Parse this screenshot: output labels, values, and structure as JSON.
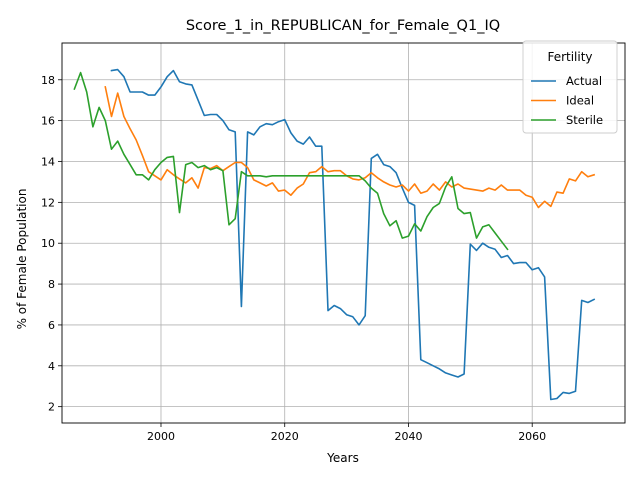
{
  "chart_data": {
    "type": "line",
    "title": "Score_1_in_REPUBLICAN_for_Female_Q1_IQ",
    "xlabel": "Years",
    "ylabel": "% of Female Population",
    "xlim": [
      1984,
      2075
    ],
    "ylim": [
      1.2,
      19.8
    ],
    "xticks": [
      2000,
      2020,
      2040,
      2060
    ],
    "yticks": [
      2,
      4,
      6,
      8,
      10,
      12,
      14,
      16,
      18
    ],
    "grid": true,
    "legend": {
      "title": "Fertility",
      "position": "upper right"
    },
    "series": [
      {
        "name": "Actual",
        "color": "#1f77b4",
        "x": [
          1992,
          1993,
          1994,
          1995,
          1996,
          1997,
          1998,
          1999,
          2000,
          2001,
          2002,
          2003,
          2004,
          2005,
          2006,
          2007,
          2008,
          2009,
          2010,
          2011,
          2012,
          2013,
          2014,
          2015,
          2016,
          2017,
          2018,
          2019,
          2020,
          2021,
          2022,
          2023,
          2024,
          2025,
          2026,
          2027,
          2028,
          2029,
          2030,
          2031,
          2032,
          2033,
          2034,
          2035,
          2036,
          2037,
          2038,
          2039,
          2040,
          2041,
          2042,
          2043,
          2044,
          2045,
          2046,
          2047,
          2048,
          2049,
          2050,
          2051,
          2052,
          2053,
          2054,
          2055,
          2056,
          2057,
          2058,
          2059,
          2060,
          2061,
          2062,
          2063,
          2064,
          2065,
          2066,
          2067,
          2068,
          2069,
          2070
        ],
        "y": [
          18.45,
          18.5,
          18.15,
          17.4,
          17.4,
          17.4,
          17.25,
          17.25,
          17.65,
          18.15,
          18.45,
          17.9,
          17.8,
          17.75,
          17.0,
          16.25,
          16.3,
          16.3,
          16.0,
          15.55,
          15.45,
          6.9,
          15.45,
          15.3,
          15.7,
          15.85,
          15.8,
          15.95,
          16.05,
          15.4,
          15.0,
          14.85,
          15.2,
          14.75,
          14.75,
          6.7,
          6.95,
          6.8,
          6.5,
          6.4,
          6.0,
          6.45,
          14.15,
          14.35,
          13.85,
          13.75,
          13.45,
          12.7,
          12.0,
          11.85,
          4.3,
          4.15,
          4.0,
          3.85,
          3.65,
          3.55,
          3.45,
          3.6,
          9.95,
          9.65,
          10.0,
          9.8,
          9.7,
          9.3,
          9.4,
          9.0,
          9.05,
          9.05,
          8.7,
          8.8,
          8.35,
          2.35,
          2.4,
          2.7,
          2.65,
          2.75,
          7.2,
          7.1,
          7.25
        ]
      },
      {
        "name": "Ideal",
        "color": "#ff7f0e",
        "x": [
          1991,
          1992,
          1993,
          1994,
          1995,
          1996,
          1997,
          1998,
          1999,
          2000,
          2001,
          2002,
          2003,
          2004,
          2005,
          2006,
          2007,
          2008,
          2009,
          2010,
          2011,
          2012,
          2013,
          2014,
          2015,
          2016,
          2017,
          2018,
          2019,
          2020,
          2021,
          2022,
          2023,
          2024,
          2025,
          2026,
          2027,
          2028,
          2029,
          2030,
          2031,
          2032,
          2033,
          2034,
          2035,
          2036,
          2037,
          2038,
          2039,
          2040,
          2041,
          2042,
          2043,
          2044,
          2045,
          2046,
          2047,
          2048,
          2049,
          2050,
          2051,
          2052,
          2053,
          2054,
          2055,
          2056,
          2057,
          2058,
          2059,
          2060,
          2061,
          2062,
          2063,
          2064,
          2065,
          2066,
          2067,
          2068,
          2069,
          2070
        ],
        "y": [
          17.65,
          16.2,
          17.35,
          16.2,
          15.6,
          15.05,
          14.3,
          13.5,
          13.3,
          13.1,
          13.6,
          13.35,
          13.15,
          12.95,
          13.2,
          12.7,
          13.7,
          13.65,
          13.8,
          13.55,
          13.75,
          13.95,
          13.95,
          13.7,
          13.1,
          12.95,
          12.8,
          12.95,
          12.55,
          12.6,
          12.35,
          12.7,
          12.9,
          13.45,
          13.5,
          13.75,
          13.5,
          13.55,
          13.55,
          13.3,
          13.15,
          13.1,
          13.2,
          13.45,
          13.2,
          13.0,
          12.85,
          12.75,
          12.85,
          12.55,
          12.9,
          12.45,
          12.55,
          12.9,
          12.6,
          13.0,
          12.75,
          12.9,
          12.7,
          12.65,
          12.6,
          12.55,
          12.7,
          12.6,
          12.85,
          12.6,
          12.6,
          12.6,
          12.35,
          12.25,
          11.75,
          12.05,
          11.8,
          12.5,
          12.45,
          13.15,
          13.05,
          13.5,
          13.25,
          13.35
        ]
      },
      {
        "name": "Sterile",
        "color": "#2ca02c",
        "x": [
          1986,
          1987,
          1988,
          1989,
          1990,
          1991,
          1992,
          1993,
          1994,
          1995,
          1996,
          1997,
          1998,
          1999,
          2000,
          2001,
          2002,
          2003,
          2004,
          2005,
          2006,
          2007,
          2008,
          2009,
          2010,
          2011,
          2012,
          2013,
          2014,
          2015,
          2016,
          2017,
          2018,
          2019,
          2020,
          2021,
          2022,
          2023,
          2024,
          2025,
          2026,
          2027,
          2028,
          2029,
          2030,
          2031,
          2032,
          2033,
          2034,
          2035,
          2036,
          2037,
          2038,
          2039,
          2040,
          2041,
          2042,
          2043,
          2044,
          2045,
          2046,
          2047,
          2048,
          2049,
          2050,
          2051,
          2052,
          2053,
          2054,
          2055,
          2056
        ],
        "y": [
          17.55,
          18.35,
          17.4,
          15.7,
          16.65,
          16.0,
          14.6,
          15.0,
          14.35,
          13.85,
          13.35,
          13.35,
          13.1,
          13.6,
          13.95,
          14.2,
          14.25,
          11.5,
          13.85,
          13.95,
          13.7,
          13.8,
          13.6,
          13.7,
          13.55,
          10.9,
          11.2,
          13.5,
          13.3,
          13.3,
          13.3,
          13.25,
          13.3,
          13.3,
          13.3,
          13.3,
          13.3,
          13.3,
          13.3,
          13.3,
          13.3,
          13.3,
          13.3,
          13.3,
          13.3,
          13.3,
          13.3,
          13.05,
          12.7,
          12.45,
          11.45,
          10.85,
          11.1,
          10.25,
          10.35,
          10.95,
          10.6,
          11.3,
          11.75,
          11.95,
          12.75,
          13.25,
          11.7,
          11.45,
          11.5,
          10.25,
          10.8,
          10.9,
          10.5,
          10.1,
          9.7
        ]
      }
    ]
  }
}
